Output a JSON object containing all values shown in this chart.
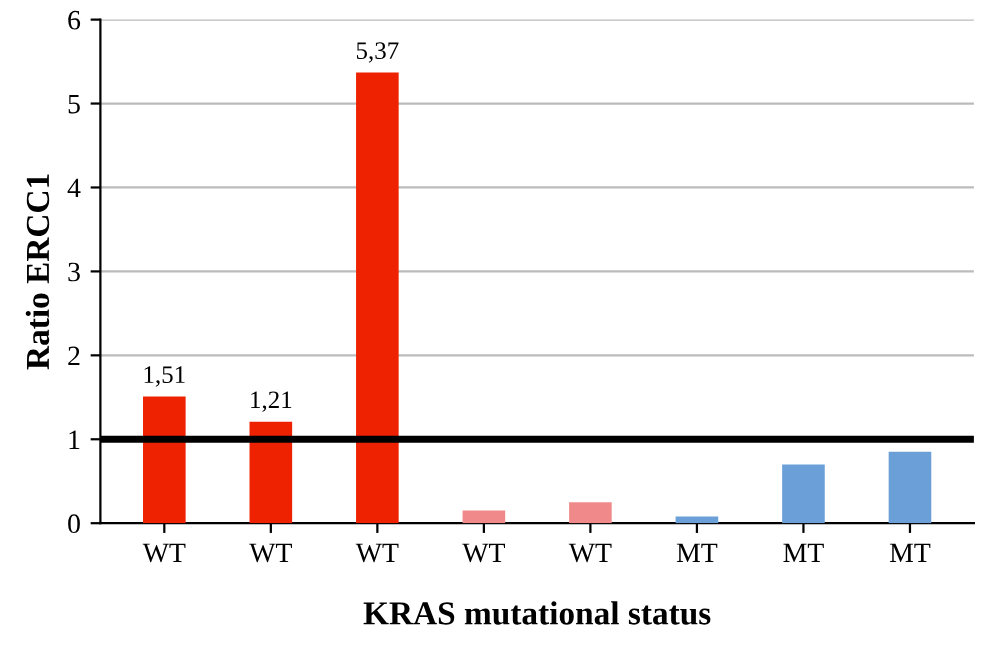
{
  "chart_data": {
    "type": "bar",
    "xlabel": "KRAS mutational status",
    "ylabel": "Ratio ERCC1",
    "categories": [
      "WT",
      "WT",
      "WT",
      "WT",
      "WT",
      "MT",
      "MT",
      "MT"
    ],
    "values": [
      1.51,
      1.21,
      5.37,
      0.15,
      0.25,
      0.08,
      0.7,
      0.85
    ],
    "colors": [
      "#ee2200",
      "#ee2200",
      "#ee2200",
      "#f08a8a",
      "#f08a8a",
      "#6a9fd8",
      "#6a9fd8",
      "#6a9fd8"
    ],
    "value_labels": [
      "1,51",
      "1,21",
      "5,37",
      null,
      null,
      null,
      null,
      null
    ],
    "ylim": [
      0,
      6
    ],
    "yticks": [
      0,
      1,
      2,
      3,
      4,
      5,
      6
    ],
    "grid": "y",
    "ref_lines": [
      {
        "axis": "y",
        "value": 1,
        "color": "#000000",
        "line_style": "solid"
      }
    ]
  }
}
